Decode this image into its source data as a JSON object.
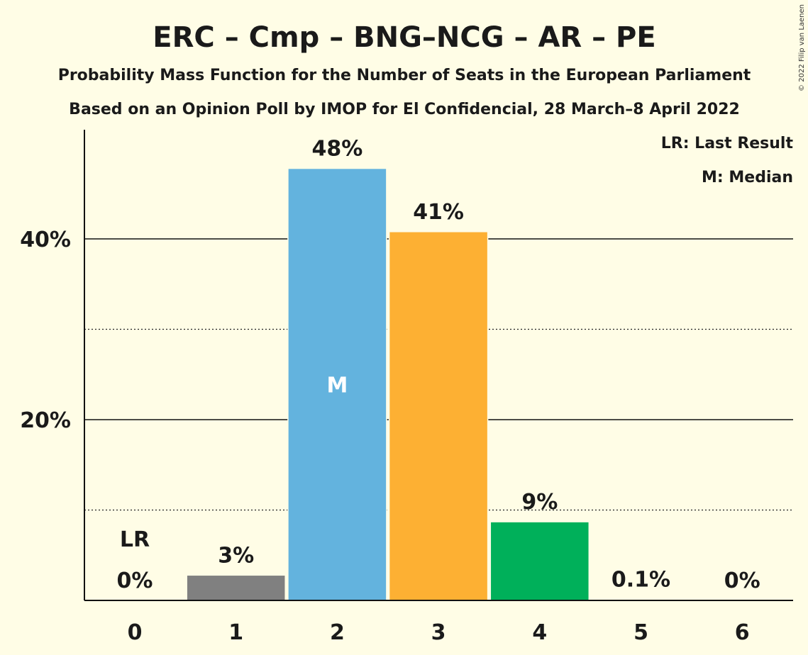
{
  "title": "ERC – Cmp – BNG–NCG – AR – PE",
  "subtitle1": "Probability Mass Function for the Number of Seats in the European Parliament",
  "subtitle2": "Based on an Opinion Poll by IMOP for El Confidencial, 28 March–8 April 2022",
  "legend": {
    "last_result": "LR: Last Result",
    "median": "M: Median"
  },
  "copyright": "© 2022 Filip van Laenen",
  "chart_data": {
    "type": "bar",
    "categories": [
      "0",
      "1",
      "2",
      "3",
      "4",
      "5",
      "6"
    ],
    "values": [
      0,
      2.8,
      47.8,
      40.8,
      8.7,
      0.1,
      0
    ],
    "value_labels": [
      "0%",
      "3%",
      "48%",
      "41%",
      "9%",
      "0.1%",
      "0%"
    ],
    "colors": [
      "#808080",
      "#808080",
      "#63b3de",
      "#fdb033",
      "#00b05a",
      "#808080",
      "#808080"
    ],
    "ylim": [
      0,
      52
    ],
    "yticks": [
      {
        "value": 20,
        "label": "20%"
      },
      {
        "value": 40,
        "label": "40%"
      }
    ],
    "minor_gridlines": [
      10,
      30
    ],
    "last_result_index": 0,
    "last_result_label": "LR",
    "median_index": 2,
    "median_label": "M",
    "grid": true,
    "legend_position": "top-right"
  }
}
